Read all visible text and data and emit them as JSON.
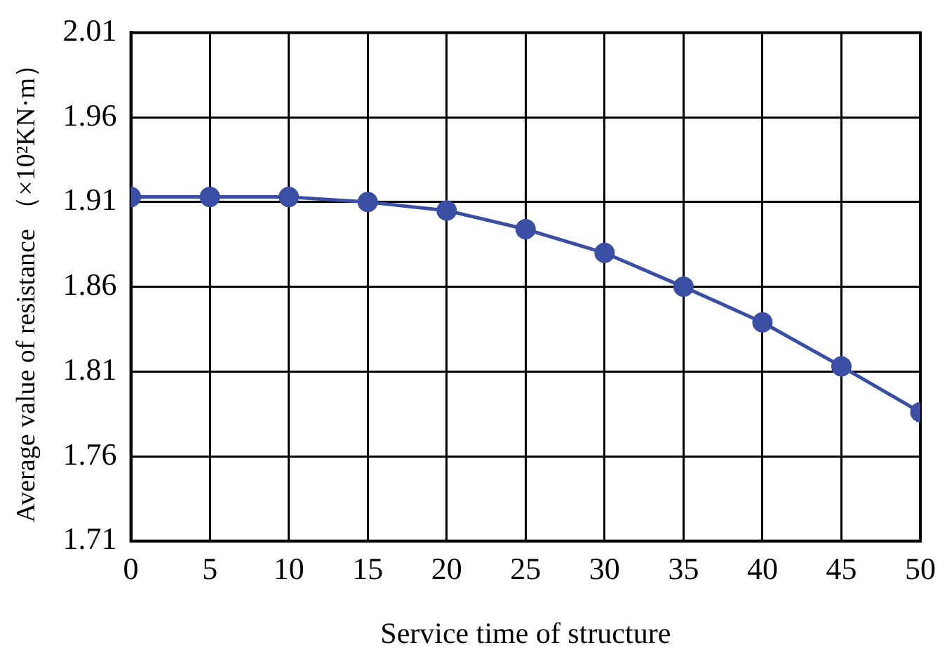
{
  "chart_data": {
    "type": "line",
    "xlabel": "Service time of structure",
    "ylabel": "Average value of resistance （×10²KN·m）",
    "x": [
      0,
      5,
      10,
      15,
      20,
      25,
      30,
      35,
      40,
      45,
      50
    ],
    "series": [
      {
        "color": "#3a4fa3",
        "values": [
          1.913,
          1.913,
          1.913,
          1.91,
          1.905,
          1.894,
          1.88,
          1.86,
          1.839,
          1.813,
          1.786
        ]
      }
    ],
    "xlim": [
      0,
      50
    ],
    "xticks": [
      0,
      5,
      10,
      15,
      20,
      25,
      30,
      35,
      40,
      45,
      50
    ],
    "ylim": [
      1.71,
      2.01
    ],
    "yticks": [
      1.71,
      1.76,
      1.81,
      1.86,
      1.91,
      1.96,
      2.01
    ],
    "grid": true,
    "marker": "circle",
    "line_style": "solid",
    "legend": false
  }
}
